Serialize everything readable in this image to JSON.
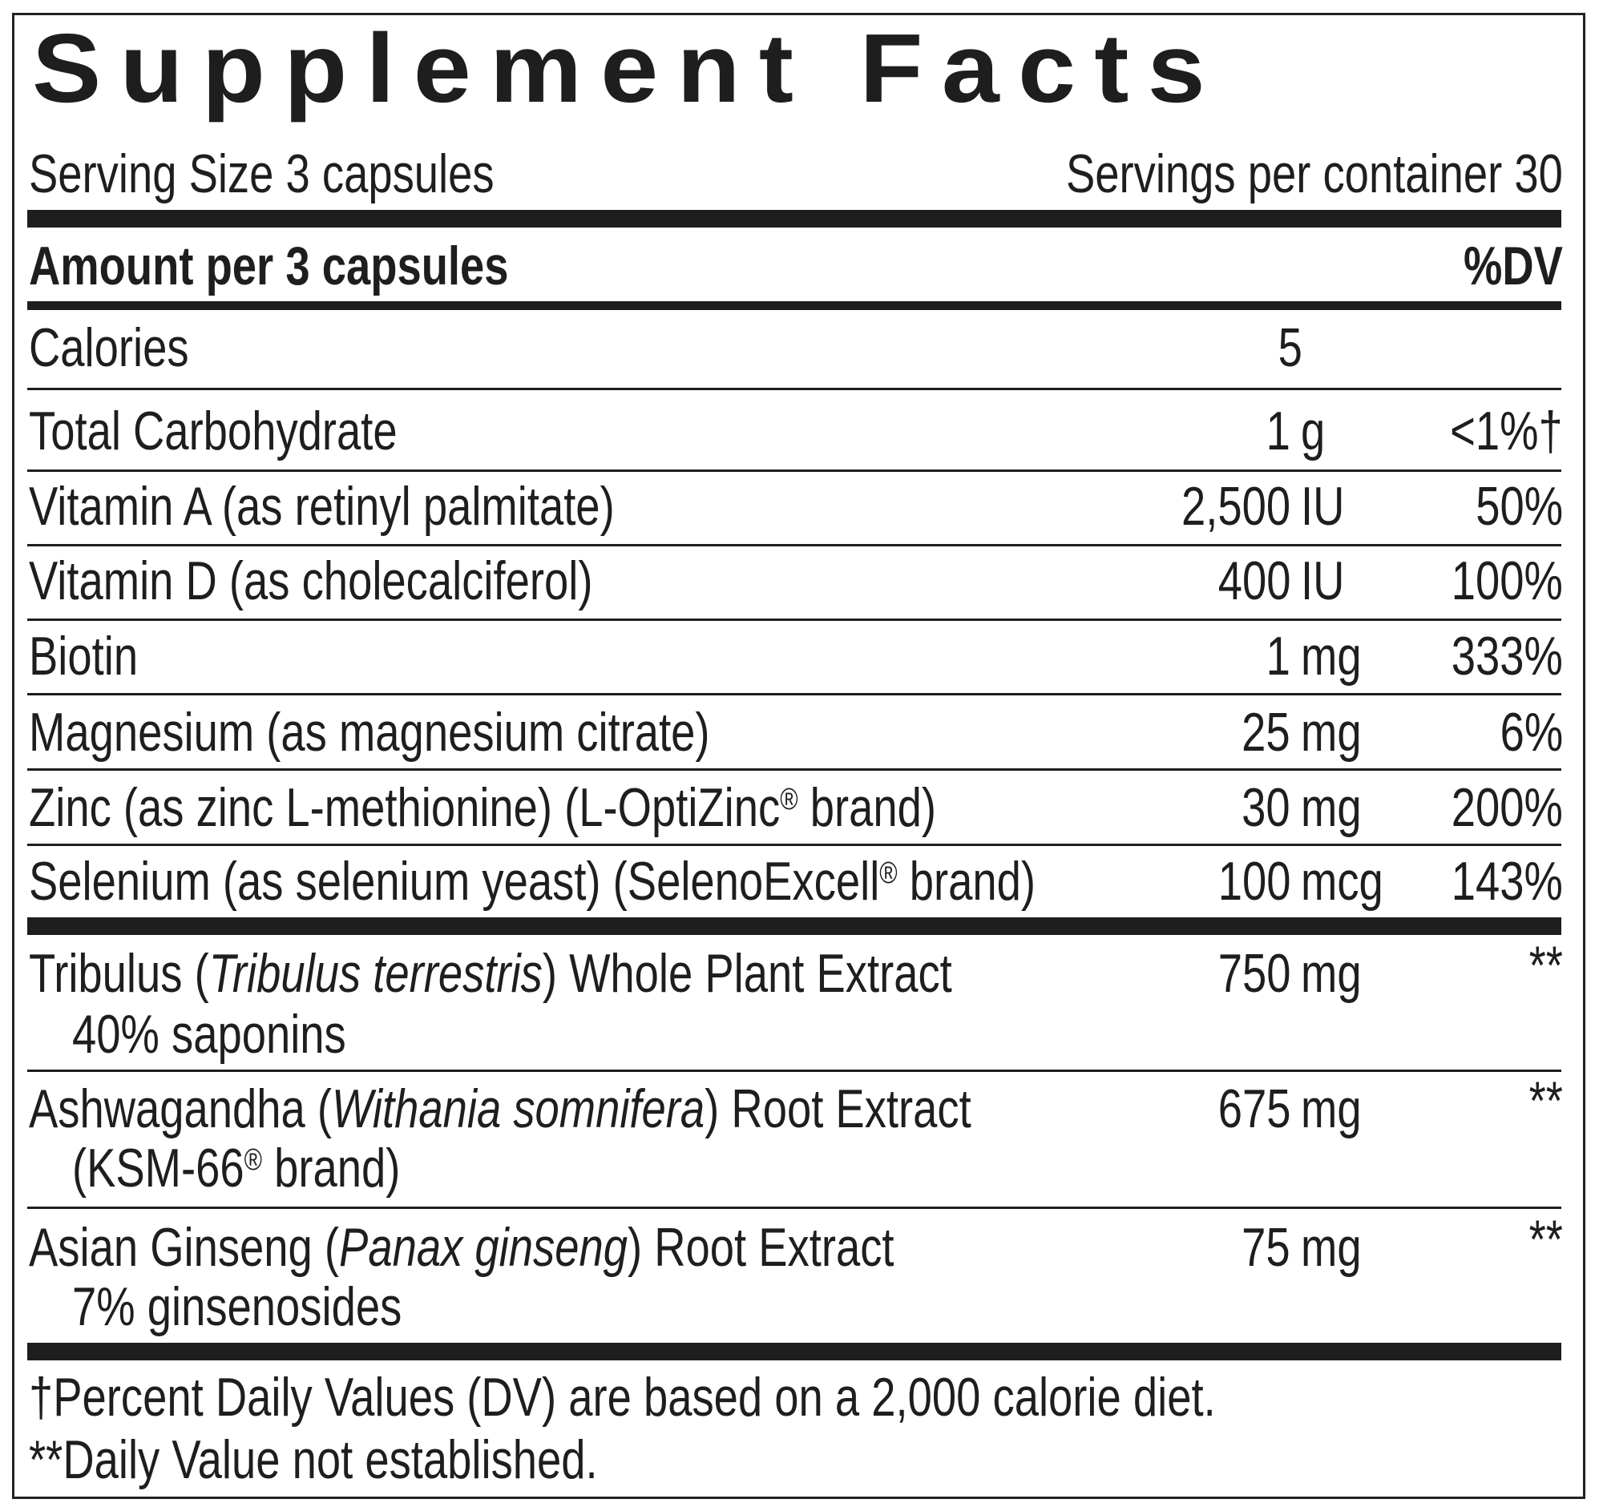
{
  "title": "Supplement Facts",
  "serving_size": "Serving Size 3 capsules",
  "servings_per_container": "Servings per container 30",
  "header": {
    "amount": "Amount per 3 capsules",
    "dv": "%DV"
  },
  "rows": [
    {
      "name": "Calories",
      "num": "5",
      "unit": "",
      "dv": ""
    },
    {
      "name": "Total Carbohydrate",
      "num": "1",
      "unit": "g",
      "dv": "<1%†"
    },
    {
      "name": "Vitamin A (as retinyl palmitate)",
      "num": "2,500",
      "unit": "IU",
      "dv": "50%"
    },
    {
      "name": "Vitamin D (as cholecalciferol)",
      "num": "400",
      "unit": "IU",
      "dv": "100%"
    },
    {
      "name": "Biotin",
      "num": "1",
      "unit": "mg",
      "dv": "333%"
    },
    {
      "name": "Magnesium (as magnesium citrate)",
      "num": "25",
      "unit": "mg",
      "dv": "6%"
    },
    {
      "name_pre": "Zinc (as zinc L-methionine) (L-OptiZinc",
      "reg": "®",
      "name_post": " brand)",
      "num": "30",
      "unit": "mg",
      "dv": "200%"
    },
    {
      "name_pre": "Selenium (as selenium yeast) (SelenoExcell",
      "reg": "®",
      "name_post": " brand)",
      "num": "100",
      "unit": "mcg",
      "dv": "143%"
    }
  ],
  "herbs": [
    {
      "pre": "Tribulus (",
      "italic": "Tribulus terrestris",
      "post": ") Whole Plant Extract",
      "line2": "40% saponins",
      "num": "750",
      "unit": "mg",
      "dv": "**"
    },
    {
      "pre": "Ashwagandha (",
      "italic": "Withania somnifera",
      "post": ") Root Extract",
      "line2_pre": "(KSM-66",
      "reg": "®",
      "line2_post": " brand)",
      "num": "675",
      "unit": "mg",
      "dv": "**"
    },
    {
      "pre": "Asian Ginseng (",
      "italic": "Panax ginseng",
      "post": ") Root Extract",
      "line2": "7% ginsenosides",
      "num": "75",
      "unit": "mg",
      "dv": "**"
    }
  ],
  "footnotes": [
    "†Percent Daily Values (DV) are based on a 2,000 calorie diet.",
    "**Daily Value not established."
  ]
}
